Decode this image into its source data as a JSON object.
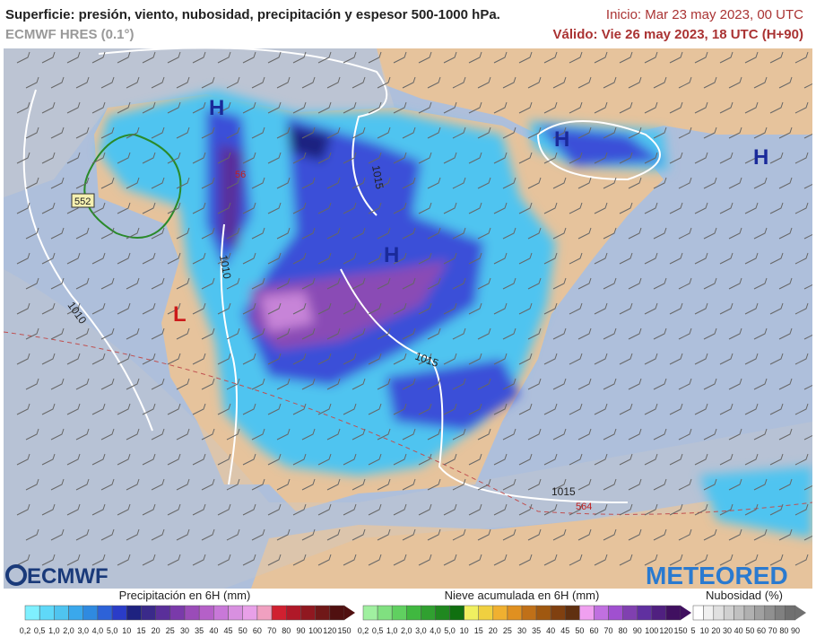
{
  "header": {
    "title": "Superficie: presión, viento, nubosidad, precipitación y espesor 500-1000 hPa.",
    "model": "ECMWF HRES (0.1°)",
    "init": "Inicio: Mar 23 may 2023, 00 UTC",
    "valid": "Válido: Vie 26 may 2023, 18 UTC (H+90)"
  },
  "map": {
    "pressure_centers": [
      "H",
      "H",
      "H",
      "H",
      "L"
    ],
    "isobar_labels": [
      "1015",
      "1010",
      "1010",
      "1015",
      "1015"
    ],
    "thickness_labels": [
      "552",
      "564",
      "56"
    ]
  },
  "logos": {
    "left": "ECMWF",
    "right": "METEORED"
  },
  "legends": [
    {
      "title": "Precipitación en 6H (mm)",
      "ticks": [
        "0,2",
        "0,5",
        "1,0",
        "2,0",
        "3,0",
        "4,0",
        "5,0",
        "10",
        "15",
        "20",
        "25",
        "30",
        "35",
        "40",
        "45",
        "50",
        "60",
        "70",
        "80",
        "90",
        "100",
        "120",
        "150"
      ]
    },
    {
      "title": "Nieve acumulada en 6H (mm)",
      "ticks": [
        "0,2",
        "0,5",
        "1,0",
        "2,0",
        "3,0",
        "4,0",
        "5,0",
        "10",
        "15",
        "20",
        "25",
        "30",
        "35",
        "40",
        "45",
        "50",
        "60",
        "70",
        "80",
        "90",
        "100",
        "120",
        "150"
      ]
    },
    {
      "title": "Nubosidad (%)",
      "ticks": [
        "5",
        "10",
        "20",
        "30",
        "40",
        "50",
        "60",
        "70",
        "80",
        "90"
      ]
    }
  ]
}
